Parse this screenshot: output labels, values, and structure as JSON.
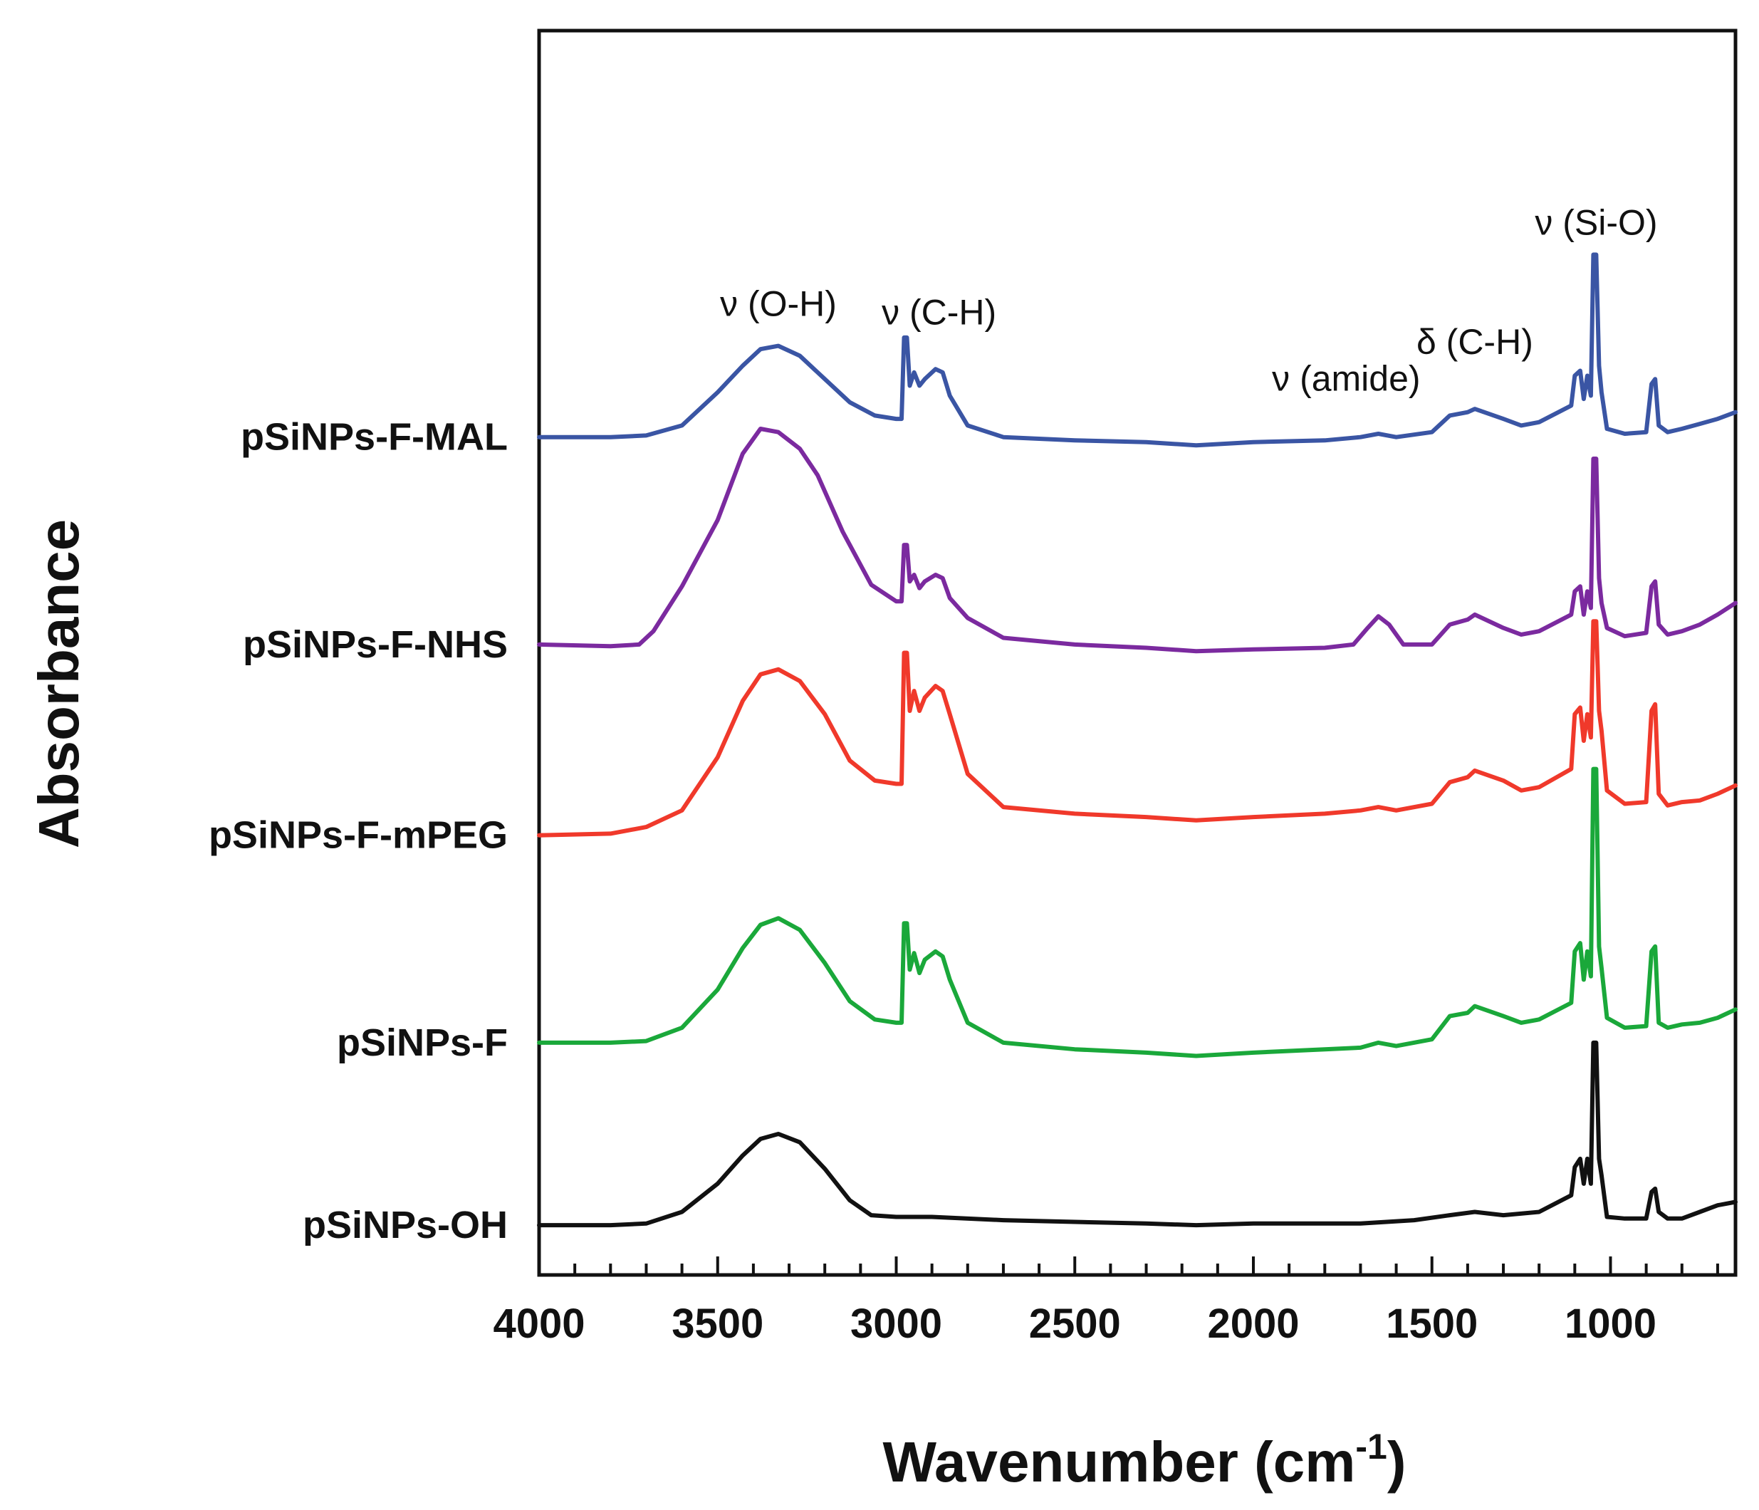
{
  "chart_data": {
    "type": "line",
    "title": "",
    "xlabel": "Wavenumber (cm",
    "xlabel_superscript": "-1",
    "xlabel_close": ")",
    "ylabel": "Absorbance",
    "xlim": [
      4000,
      650
    ],
    "x_reversed": true,
    "ylim": [
      0,
      7.5
    ],
    "y_ticks_shown": false,
    "grid": false,
    "x_ticks": [
      4000,
      3500,
      3000,
      2500,
      2000,
      1500,
      1000
    ],
    "series": [
      {
        "name": "pSiNPs-OH",
        "color": "#111111",
        "baseline": 0.3,
        "points": [
          [
            4000,
            0.3
          ],
          [
            3800,
            0.3
          ],
          [
            3700,
            0.31
          ],
          [
            3600,
            0.38
          ],
          [
            3500,
            0.55
          ],
          [
            3430,
            0.72
          ],
          [
            3380,
            0.82
          ],
          [
            3330,
            0.85
          ],
          [
            3270,
            0.8
          ],
          [
            3200,
            0.64
          ],
          [
            3130,
            0.45
          ],
          [
            3070,
            0.36
          ],
          [
            3000,
            0.35
          ],
          [
            2900,
            0.35
          ],
          [
            2700,
            0.33
          ],
          [
            2500,
            0.32
          ],
          [
            2300,
            0.31
          ],
          [
            2160,
            0.3
          ],
          [
            2000,
            0.31
          ],
          [
            1700,
            0.31
          ],
          [
            1550,
            0.33
          ],
          [
            1450,
            0.36
          ],
          [
            1380,
            0.38
          ],
          [
            1300,
            0.36
          ],
          [
            1200,
            0.38
          ],
          [
            1110,
            0.48
          ],
          [
            1100,
            0.65
          ],
          [
            1085,
            0.7
          ],
          [
            1075,
            0.55
          ],
          [
            1065,
            0.7
          ],
          [
            1055,
            0.55
          ],
          [
            1048,
            1.4
          ],
          [
            1040,
            1.4
          ],
          [
            1032,
            0.7
          ],
          [
            1025,
            0.6
          ],
          [
            1010,
            0.35
          ],
          [
            960,
            0.34
          ],
          [
            900,
            0.34
          ],
          [
            885,
            0.5
          ],
          [
            875,
            0.52
          ],
          [
            865,
            0.38
          ],
          [
            840,
            0.34
          ],
          [
            800,
            0.34
          ],
          [
            750,
            0.38
          ],
          [
            700,
            0.42
          ],
          [
            650,
            0.44
          ]
        ]
      },
      {
        "name": "pSiNPs-F",
        "color": "#1aa83a",
        "baseline": 1.4,
        "points": [
          [
            4000,
            1.4
          ],
          [
            3800,
            1.4
          ],
          [
            3700,
            1.41
          ],
          [
            3600,
            1.49
          ],
          [
            3500,
            1.72
          ],
          [
            3430,
            1.97
          ],
          [
            3380,
            2.11
          ],
          [
            3330,
            2.15
          ],
          [
            3270,
            2.08
          ],
          [
            3200,
            1.88
          ],
          [
            3130,
            1.65
          ],
          [
            3060,
            1.54
          ],
          [
            3000,
            1.52
          ],
          [
            2985,
            1.52
          ],
          [
            2978,
            2.12
          ],
          [
            2970,
            2.12
          ],
          [
            2962,
            1.84
          ],
          [
            2950,
            1.94
          ],
          [
            2935,
            1.82
          ],
          [
            2920,
            1.9
          ],
          [
            2890,
            1.95
          ],
          [
            2870,
            1.92
          ],
          [
            2850,
            1.78
          ],
          [
            2800,
            1.52
          ],
          [
            2700,
            1.4
          ],
          [
            2500,
            1.36
          ],
          [
            2300,
            1.34
          ],
          [
            2160,
            1.32
          ],
          [
            2000,
            1.34
          ],
          [
            1800,
            1.36
          ],
          [
            1700,
            1.37
          ],
          [
            1650,
            1.4
          ],
          [
            1600,
            1.38
          ],
          [
            1500,
            1.42
          ],
          [
            1450,
            1.56
          ],
          [
            1400,
            1.58
          ],
          [
            1380,
            1.62
          ],
          [
            1300,
            1.56
          ],
          [
            1250,
            1.52
          ],
          [
            1200,
            1.54
          ],
          [
            1110,
            1.64
          ],
          [
            1100,
            1.95
          ],
          [
            1085,
            2.0
          ],
          [
            1075,
            1.78
          ],
          [
            1065,
            1.95
          ],
          [
            1055,
            1.8
          ],
          [
            1048,
            3.05
          ],
          [
            1040,
            3.05
          ],
          [
            1032,
            1.98
          ],
          [
            1025,
            1.85
          ],
          [
            1010,
            1.55
          ],
          [
            960,
            1.49
          ],
          [
            900,
            1.5
          ],
          [
            885,
            1.95
          ],
          [
            875,
            1.98
          ],
          [
            865,
            1.52
          ],
          [
            840,
            1.49
          ],
          [
            800,
            1.51
          ],
          [
            750,
            1.52
          ],
          [
            700,
            1.55
          ],
          [
            650,
            1.6
          ]
        ]
      },
      {
        "name": "pSiNPs-F-mPEG",
        "color": "#f0392b",
        "baseline": 2.65,
        "points": [
          [
            4000,
            2.65
          ],
          [
            3800,
            2.66
          ],
          [
            3700,
            2.7
          ],
          [
            3600,
            2.8
          ],
          [
            3500,
            3.12
          ],
          [
            3430,
            3.46
          ],
          [
            3380,
            3.62
          ],
          [
            3330,
            3.65
          ],
          [
            3270,
            3.58
          ],
          [
            3200,
            3.38
          ],
          [
            3130,
            3.1
          ],
          [
            3060,
            2.98
          ],
          [
            3000,
            2.96
          ],
          [
            2985,
            2.96
          ],
          [
            2978,
            3.75
          ],
          [
            2970,
            3.75
          ],
          [
            2962,
            3.4
          ],
          [
            2950,
            3.52
          ],
          [
            2935,
            3.4
          ],
          [
            2920,
            3.48
          ],
          [
            2890,
            3.55
          ],
          [
            2870,
            3.52
          ],
          [
            2850,
            3.38
          ],
          [
            2800,
            3.02
          ],
          [
            2700,
            2.82
          ],
          [
            2500,
            2.78
          ],
          [
            2300,
            2.76
          ],
          [
            2160,
            2.74
          ],
          [
            2000,
            2.76
          ],
          [
            1800,
            2.78
          ],
          [
            1700,
            2.8
          ],
          [
            1650,
            2.82
          ],
          [
            1600,
            2.8
          ],
          [
            1500,
            2.84
          ],
          [
            1450,
            2.97
          ],
          [
            1400,
            3.0
          ],
          [
            1380,
            3.04
          ],
          [
            1300,
            2.98
          ],
          [
            1250,
            2.92
          ],
          [
            1200,
            2.94
          ],
          [
            1110,
            3.05
          ],
          [
            1100,
            3.38
          ],
          [
            1085,
            3.42
          ],
          [
            1075,
            3.22
          ],
          [
            1065,
            3.38
          ],
          [
            1055,
            3.24
          ],
          [
            1048,
            3.94
          ],
          [
            1040,
            3.94
          ],
          [
            1032,
            3.4
          ],
          [
            1025,
            3.28
          ],
          [
            1010,
            2.92
          ],
          [
            960,
            2.84
          ],
          [
            900,
            2.85
          ],
          [
            885,
            3.4
          ],
          [
            875,
            3.44
          ],
          [
            865,
            2.9
          ],
          [
            840,
            2.83
          ],
          [
            800,
            2.85
          ],
          [
            750,
            2.86
          ],
          [
            700,
            2.9
          ],
          [
            650,
            2.95
          ]
        ]
      },
      {
        "name": "pSiNPs-F-NHS",
        "color": "#7b2a9f",
        "baseline": 3.8,
        "points": [
          [
            4000,
            3.8
          ],
          [
            3800,
            3.79
          ],
          [
            3720,
            3.8
          ],
          [
            3680,
            3.88
          ],
          [
            3600,
            4.15
          ],
          [
            3500,
            4.55
          ],
          [
            3430,
            4.95
          ],
          [
            3380,
            5.1
          ],
          [
            3330,
            5.08
          ],
          [
            3270,
            4.98
          ],
          [
            3220,
            4.82
          ],
          [
            3150,
            4.48
          ],
          [
            3070,
            4.16
          ],
          [
            3000,
            4.06
          ],
          [
            2985,
            4.06
          ],
          [
            2978,
            4.4
          ],
          [
            2970,
            4.4
          ],
          [
            2962,
            4.18
          ],
          [
            2950,
            4.22
          ],
          [
            2935,
            4.14
          ],
          [
            2920,
            4.18
          ],
          [
            2890,
            4.22
          ],
          [
            2870,
            4.2
          ],
          [
            2850,
            4.08
          ],
          [
            2800,
            3.96
          ],
          [
            2700,
            3.84
          ],
          [
            2500,
            3.8
          ],
          [
            2300,
            3.78
          ],
          [
            2160,
            3.76
          ],
          [
            2000,
            3.77
          ],
          [
            1800,
            3.78
          ],
          [
            1720,
            3.8
          ],
          [
            1680,
            3.9
          ],
          [
            1650,
            3.97
          ],
          [
            1620,
            3.92
          ],
          [
            1580,
            3.8
          ],
          [
            1500,
            3.8
          ],
          [
            1450,
            3.92
          ],
          [
            1400,
            3.95
          ],
          [
            1380,
            3.98
          ],
          [
            1300,
            3.9
          ],
          [
            1250,
            3.86
          ],
          [
            1200,
            3.88
          ],
          [
            1110,
            3.98
          ],
          [
            1100,
            4.12
          ],
          [
            1085,
            4.15
          ],
          [
            1075,
            3.98
          ],
          [
            1065,
            4.12
          ],
          [
            1055,
            4.02
          ],
          [
            1048,
            4.92
          ],
          [
            1040,
            4.92
          ],
          [
            1032,
            4.2
          ],
          [
            1025,
            4.05
          ],
          [
            1010,
            3.9
          ],
          [
            960,
            3.85
          ],
          [
            900,
            3.87
          ],
          [
            885,
            4.15
          ],
          [
            875,
            4.18
          ],
          [
            865,
            3.92
          ],
          [
            840,
            3.86
          ],
          [
            800,
            3.88
          ],
          [
            750,
            3.92
          ],
          [
            700,
            3.98
          ],
          [
            650,
            4.05
          ]
        ]
      },
      {
        "name": "pSiNPs-F-MAL",
        "color": "#3a55a4",
        "baseline": 5.05,
        "points": [
          [
            4000,
            5.05
          ],
          [
            3800,
            5.05
          ],
          [
            3700,
            5.06
          ],
          [
            3600,
            5.12
          ],
          [
            3500,
            5.32
          ],
          [
            3430,
            5.48
          ],
          [
            3380,
            5.58
          ],
          [
            3330,
            5.6
          ],
          [
            3270,
            5.54
          ],
          [
            3200,
            5.4
          ],
          [
            3130,
            5.26
          ],
          [
            3060,
            5.18
          ],
          [
            3000,
            5.16
          ],
          [
            2985,
            5.16
          ],
          [
            2978,
            5.65
          ],
          [
            2970,
            5.65
          ],
          [
            2962,
            5.36
          ],
          [
            2950,
            5.44
          ],
          [
            2935,
            5.36
          ],
          [
            2920,
            5.4
          ],
          [
            2890,
            5.46
          ],
          [
            2870,
            5.44
          ],
          [
            2850,
            5.3
          ],
          [
            2800,
            5.12
          ],
          [
            2700,
            5.05
          ],
          [
            2500,
            5.03
          ],
          [
            2300,
            5.02
          ],
          [
            2160,
            5.0
          ],
          [
            2000,
            5.02
          ],
          [
            1800,
            5.03
          ],
          [
            1700,
            5.05
          ],
          [
            1650,
            5.07
          ],
          [
            1600,
            5.05
          ],
          [
            1500,
            5.08
          ],
          [
            1450,
            5.18
          ],
          [
            1400,
            5.2
          ],
          [
            1380,
            5.22
          ],
          [
            1300,
            5.16
          ],
          [
            1250,
            5.12
          ],
          [
            1200,
            5.14
          ],
          [
            1110,
            5.24
          ],
          [
            1100,
            5.42
          ],
          [
            1085,
            5.45
          ],
          [
            1075,
            5.28
          ],
          [
            1065,
            5.42
          ],
          [
            1055,
            5.3
          ],
          [
            1048,
            6.15
          ],
          [
            1040,
            6.15
          ],
          [
            1032,
            5.48
          ],
          [
            1025,
            5.32
          ],
          [
            1010,
            5.1
          ],
          [
            960,
            5.07
          ],
          [
            900,
            5.08
          ],
          [
            885,
            5.37
          ],
          [
            875,
            5.4
          ],
          [
            865,
            5.12
          ],
          [
            840,
            5.08
          ],
          [
            800,
            5.1
          ],
          [
            750,
            5.13
          ],
          [
            700,
            5.16
          ],
          [
            650,
            5.2
          ]
        ]
      }
    ],
    "annotations": [
      {
        "text": "ν (O-H)",
        "x": 3330,
        "y": 5.78
      },
      {
        "text": "ν (C-H)",
        "x": 2880,
        "y": 5.73
      },
      {
        "text": "δ (C-H)",
        "x": 1380,
        "y": 5.55
      },
      {
        "text": "ν (amide)",
        "x": 1740,
        "y": 5.33
      },
      {
        "text": "ν (Si-O)",
        "x": 1040,
        "y": 6.27
      }
    ]
  }
}
